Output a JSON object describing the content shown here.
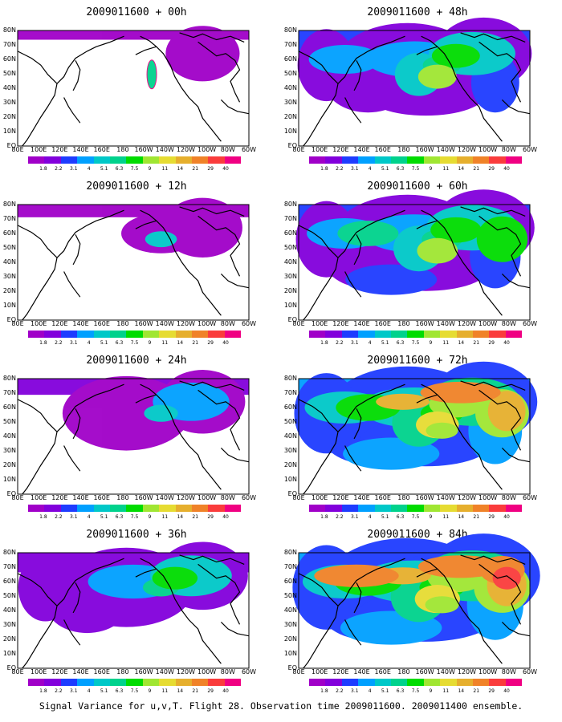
{
  "panels": [
    {
      "title": "2009011600 + 00h",
      "level": 0
    },
    {
      "title": "2009011600 + 48h",
      "level": 4
    },
    {
      "title": "2009011600 + 12h",
      "level": 1
    },
    {
      "title": "2009011600 + 60h",
      "level": 5
    },
    {
      "title": "2009011600 + 24h",
      "level": 2
    },
    {
      "title": "2009011600 + 72h",
      "level": 6
    },
    {
      "title": "2009011600 + 36h",
      "level": 3
    },
    {
      "title": "2009011600 + 84h",
      "level": 7
    }
  ],
  "x_ticks": [
    "80E",
    "100E",
    "120E",
    "140E",
    "160E",
    "180",
    "160W",
    "140W",
    "120W",
    "100W",
    "80W",
    "60W"
  ],
  "y_ticks": [
    "80N",
    "70N",
    "60N",
    "50N",
    "40N",
    "30N",
    "20N",
    "10N",
    "EQ"
  ],
  "colorbar": {
    "labels": [
      "1.8",
      "2.2",
      "3.1",
      "4",
      "5.1",
      "6.3",
      "7.5",
      "9",
      "11",
      "14",
      "21",
      "29",
      "40"
    ],
    "colors": [
      "#a000c8",
      "#8200dc",
      "#1e3cff",
      "#00a0ff",
      "#00c8c8",
      "#00d28c",
      "#00dc00",
      "#a0e632",
      "#e6dc32",
      "#e6af2d",
      "#f08228",
      "#fa3c3c",
      "#f00082"
    ]
  },
  "caption": "Signal Variance for u,v,T. Flight 28. Observation time 2009011600. 2009011400 ensemble."
}
